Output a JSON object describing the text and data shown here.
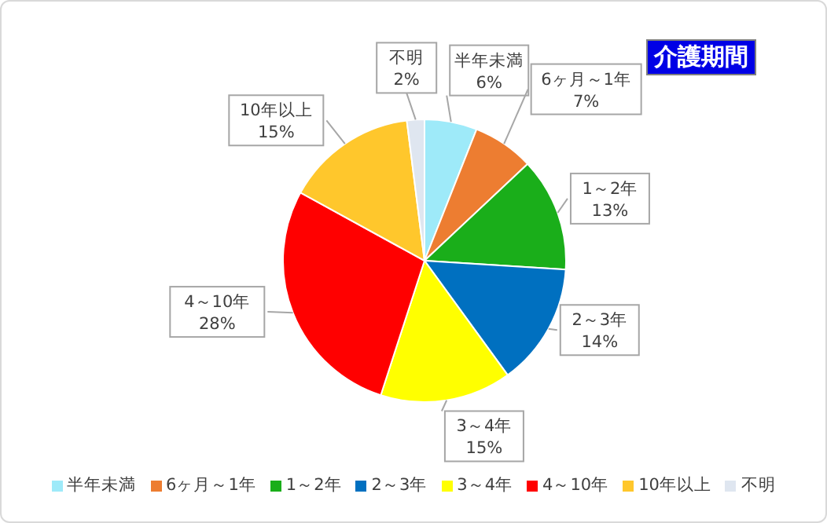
{
  "chart_data": {
    "type": "pie",
    "title": "介護期間",
    "categories": [
      "半年未満",
      "6ヶ月～1年",
      "1～2年",
      "2～3年",
      "3～4年",
      "4～10年",
      "10年以上",
      "不明"
    ],
    "values": [
      6,
      7,
      13,
      14,
      15,
      28,
      15,
      2
    ],
    "value_labels": [
      "6%",
      "7%",
      "13%",
      "14%",
      "15%",
      "28%",
      "15%",
      "2%"
    ],
    "colors": [
      "#9eeaf9",
      "#ed7d31",
      "#1aae1a",
      "#0070c0",
      "#ffff00",
      "#ff0000",
      "#ffc72c",
      "#dfe6f0"
    ],
    "legend": "bottom"
  }
}
